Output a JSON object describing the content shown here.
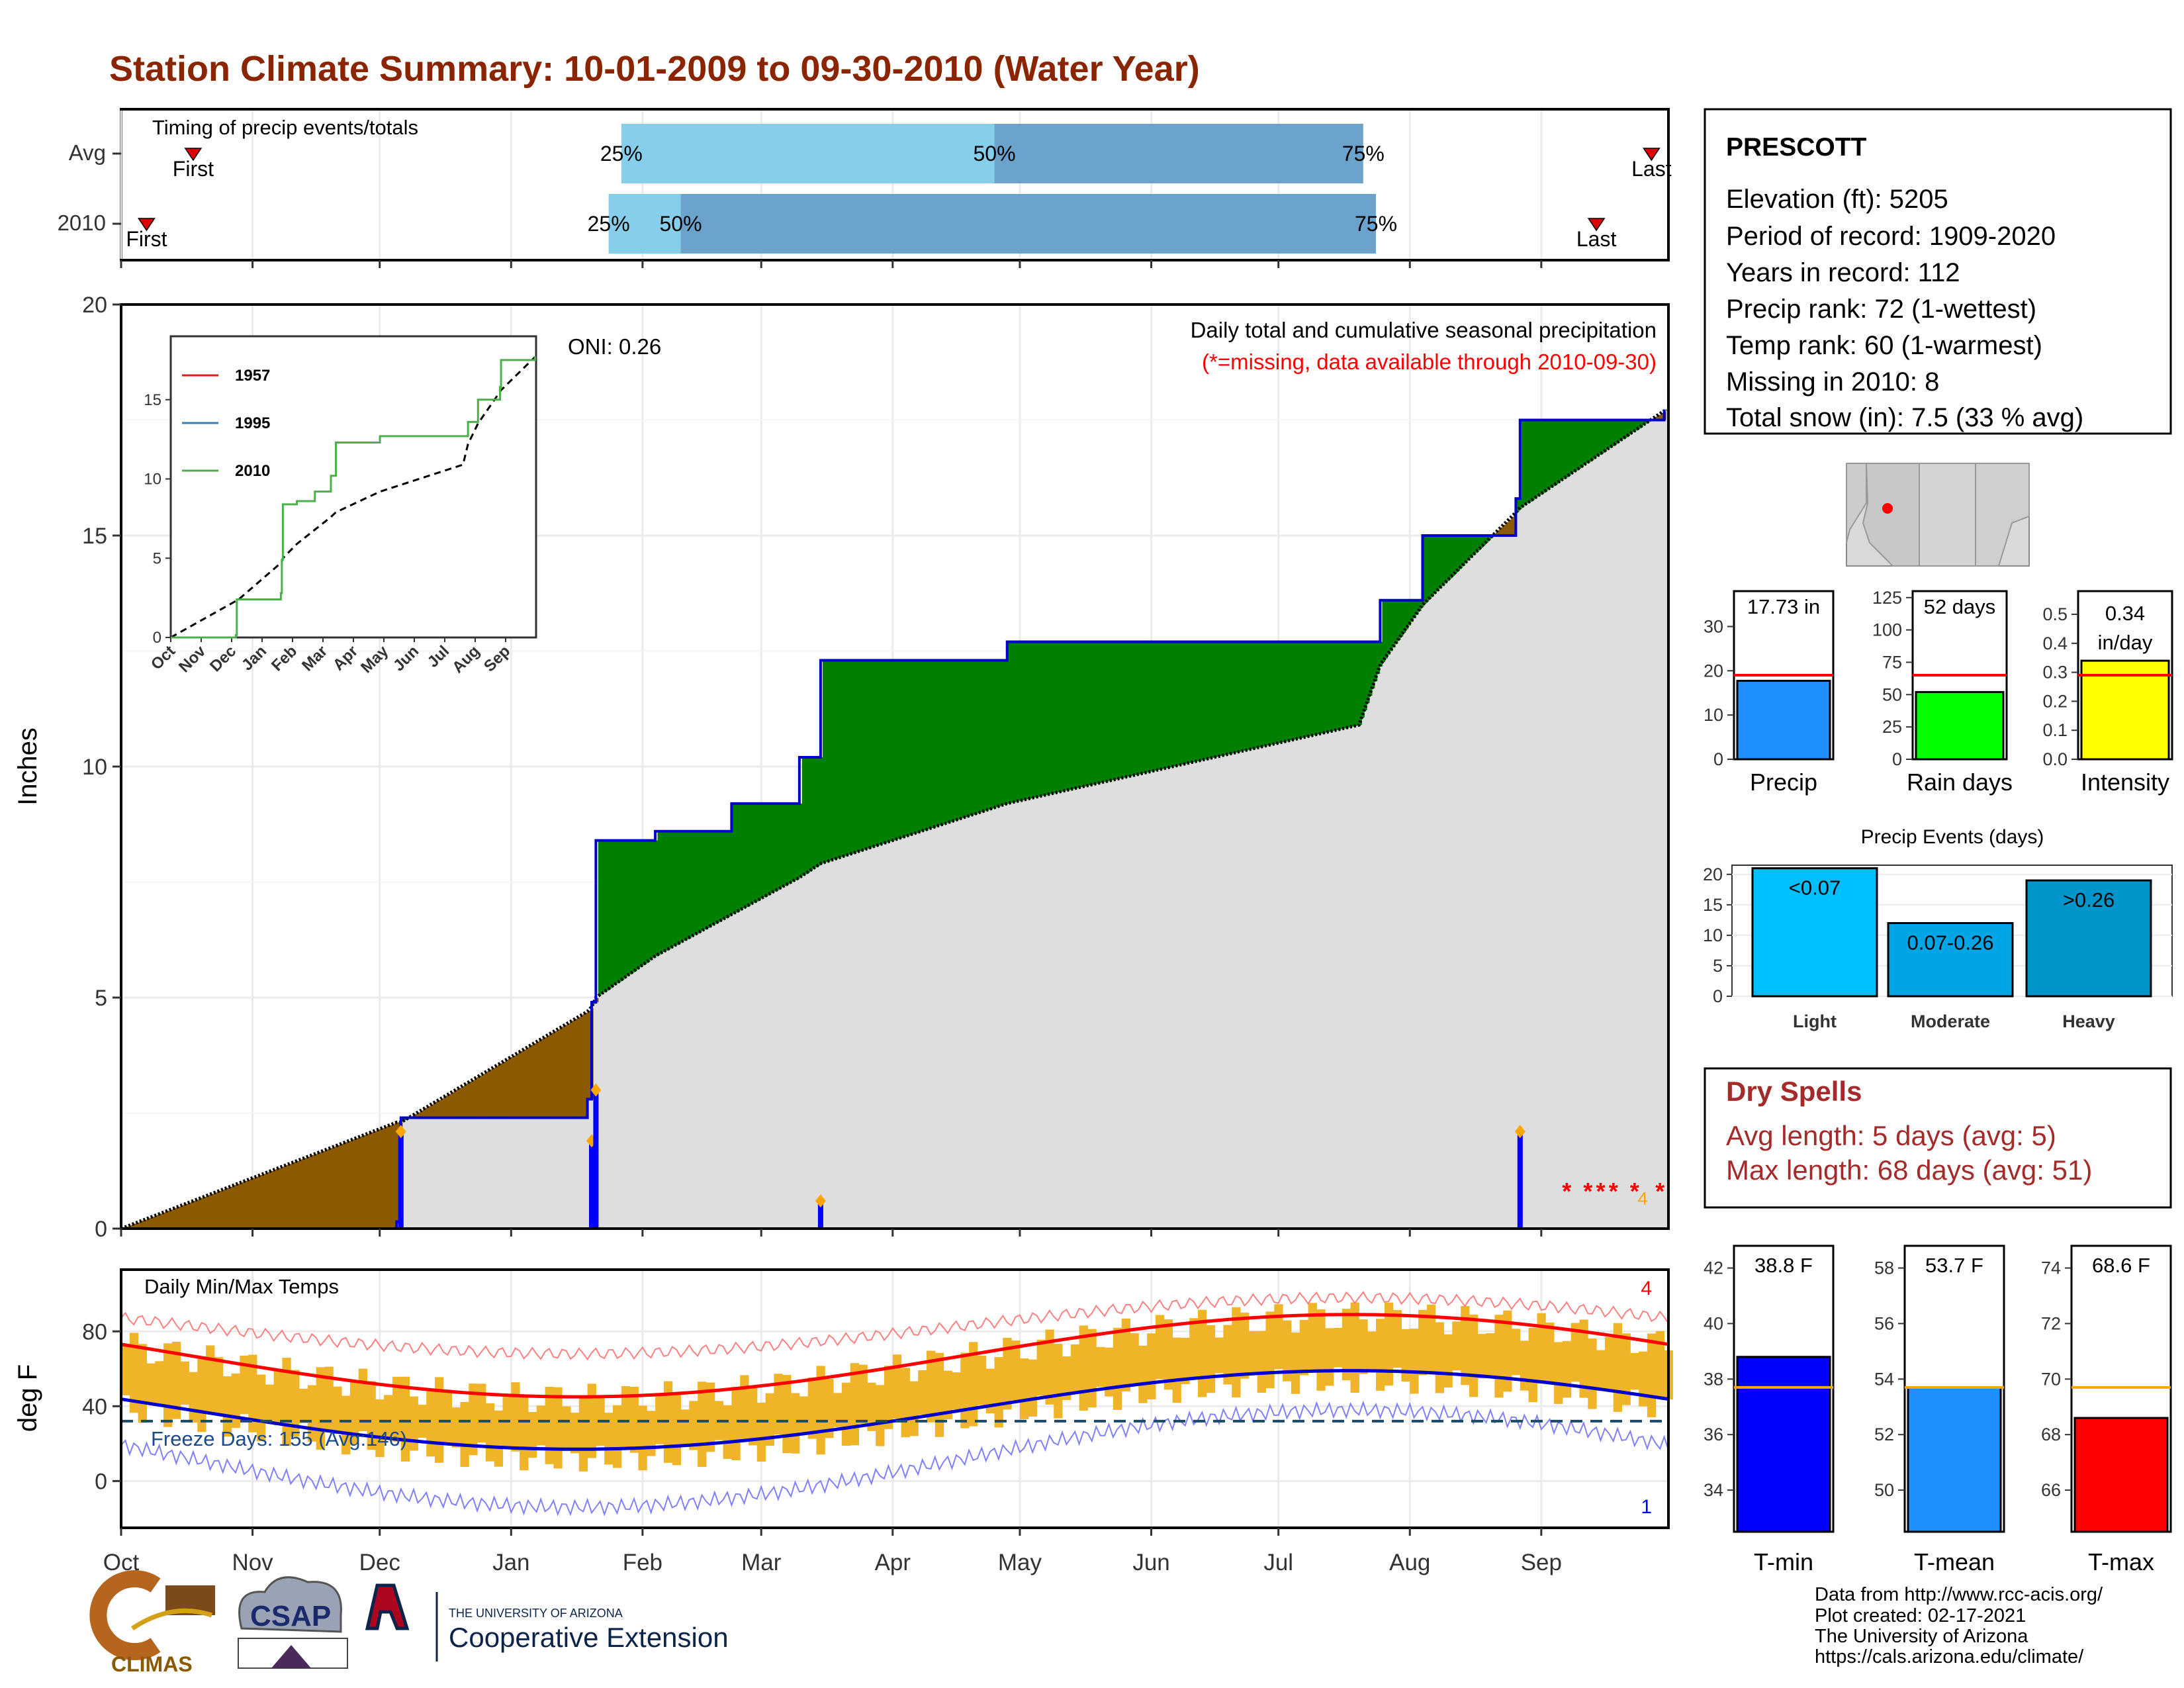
{
  "page": {
    "title": "Station Climate Summary: 10-01-2009 to 09-30-2010 (Water Year)"
  },
  "timing": {
    "label": "Timing of precip events/totals",
    "rows": [
      {
        "name": "Avg",
        "first_label": "First",
        "last_label": "Last",
        "first_date": "2009-10-18",
        "last_date": "2010-09-27",
        "p25": "2010-01-27",
        "p50": "2010-04-25",
        "p75": "2010-07-21"
      },
      {
        "name": "2010",
        "first_label": "First",
        "last_label": "Last",
        "first_date": "2009-10-07",
        "last_date": "2010-09-14",
        "p25": "2010-01-24",
        "p50": "2010-02-10",
        "p75": "2010-07-24"
      }
    ],
    "pct_labels": [
      "25%",
      "50%",
      "75%"
    ],
    "colors": {
      "light": "#87ceeb",
      "dark": "#6ba3cc",
      "marker": "#dd0000"
    }
  },
  "precip": {
    "ylabel": "Inches",
    "title": "Daily total and cumulative seasonal precipitation",
    "subtitle": "(*=missing, data available through 2010-09-30)",
    "oni": "ONI: 0.26",
    "missing_marker": "*",
    "count_label": "4",
    "yticks": [
      "0",
      "5",
      "10",
      "15",
      "20"
    ],
    "colors": {
      "avg": "#000000",
      "obs": "#0000cc",
      "above": "#008000",
      "below": "#8b5a00",
      "fill": "#dedede"
    }
  },
  "inset": {
    "legend": [
      "1957",
      "1995",
      "2010"
    ],
    "yticks": [
      "0",
      "5",
      "10",
      "15"
    ],
    "xticks": [
      "Oct",
      "Nov",
      "Dec",
      "Jan",
      "Feb",
      "Mar",
      "Apr",
      "May",
      "Jun",
      "Jul",
      "Aug",
      "Sep"
    ],
    "colors": {
      "1957": "#e41a1c",
      "1995": "#377eb8",
      "2010": "#4daf4a"
    }
  },
  "temp": {
    "ylabel": "deg F",
    "label": "Daily Min/Max Temps",
    "freeze": "Freeze Days: 155 (Avg:146)",
    "top_count": "4",
    "bottom_count": "1",
    "yticks": [
      "0",
      "40",
      "80"
    ]
  },
  "xaxis": {
    "months": [
      "Oct",
      "Nov",
      "Dec",
      "Jan",
      "Feb",
      "Mar",
      "Apr",
      "May",
      "Jun",
      "Jul",
      "Aug",
      "Sep"
    ]
  },
  "station": {
    "name": "PRESCOTT",
    "lines": [
      "Elevation (ft): 5205",
      "Period of record: 1909-2020",
      "Years in record: 112",
      "Precip rank: 72 (1-wettest)",
      "Temp rank: 60 (1-warmest)",
      "Missing in 2010: 8",
      "Total snow (in): 7.5 (33 % avg)"
    ]
  },
  "summary_bars": [
    {
      "label": "Precip",
      "value_label": "17.73 in",
      "value": 17.73,
      "avg": 19.0,
      "max": 38,
      "ticks": [
        "0",
        "10",
        "20",
        "30"
      ],
      "tick_vals": [
        0,
        10,
        20,
        30
      ],
      "color": "#1e90ff"
    },
    {
      "label": "Rain days",
      "value_label": "52 days",
      "value": 52,
      "avg": 65,
      "max": 130,
      "ticks": [
        "0",
        "25",
        "50",
        "75",
        "100",
        "125"
      ],
      "tick_vals": [
        0,
        25,
        50,
        75,
        100,
        125
      ],
      "color": "#00ff00"
    },
    {
      "label": "Intensity",
      "value_label": "0.34 in/day",
      "value": 0.34,
      "avg": 0.29,
      "max": 0.58,
      "ticks": [
        "0.0",
        "0.1",
        "0.2",
        "0.3",
        "0.4",
        "0.5"
      ],
      "tick_vals": [
        0,
        0.1,
        0.2,
        0.3,
        0.4,
        0.5
      ],
      "color": "#ffff00"
    }
  ],
  "events": {
    "title": "Precip Events (days)",
    "bars": [
      {
        "label": "Light",
        "value_label": "<0.07",
        "value": 21,
        "color": "#00bfff"
      },
      {
        "label": "Moderate",
        "value_label": "0.07-0.26",
        "value": 12,
        "color": "#00a5e6"
      },
      {
        "label": "Heavy",
        "value_label": ">0.26",
        "value": 19,
        "color": "#0096cc"
      }
    ],
    "yticks": [
      "0",
      "5",
      "10",
      "15",
      "20"
    ]
  },
  "dry_spells": {
    "title": "Dry Spells",
    "lines": [
      "Avg length: 5 days (avg: 5)",
      "Max length: 68 days (avg: 51)"
    ],
    "color": "#a52a2a"
  },
  "temp_bars": [
    {
      "label": "T-min",
      "value_label": "38.8 F",
      "value": 38.8,
      "avg": 37.7,
      "min": 32.5,
      "max": 42.8,
      "ticks": [
        "34",
        "36",
        "38",
        "40",
        "42"
      ],
      "tick_vals": [
        34,
        36,
        38,
        40,
        42
      ],
      "color": "#0000ff"
    },
    {
      "label": "T-mean",
      "value_label": "53.7 F",
      "value": 53.7,
      "avg": 53.7,
      "min": 48.5,
      "max": 58.8,
      "ticks": [
        "50",
        "52",
        "54",
        "56",
        "58"
      ],
      "tick_vals": [
        50,
        52,
        54,
        56,
        58
      ],
      "color": "#1e90ff"
    },
    {
      "label": "T-max",
      "value_label": "68.6 F",
      "value": 68.6,
      "avg": 69.7,
      "min": 64.5,
      "max": 74.8,
      "ticks": [
        "66",
        "68",
        "70",
        "72",
        "74"
      ],
      "tick_vals": [
        66,
        68,
        70,
        72,
        74
      ],
      "color": "#ff0000"
    }
  ],
  "footer": {
    "lines": [
      "Data from http://www.rcc-acis.org/",
      "Plot created: 02-17-2021",
      "The University of Arizona",
      "https://cals.arizona.edu/climate/"
    ],
    "climas": "CLIMAS",
    "csap": "CSAP",
    "ua_small": "THE UNIVERSITY OF ARIZONA",
    "ua_big": "Cooperative Extension"
  },
  "chart_data": {
    "type": "area",
    "title": "Daily total and cumulative seasonal precipitation",
    "ylabel": "Inches",
    "ylim": [
      0,
      20
    ],
    "x": [
      "2009-10-01",
      "2009-12-05",
      "2009-12-06",
      "2010-01-19",
      "2010-01-20",
      "2010-01-21",
      "2010-02-04",
      "2010-02-22",
      "2010-03-10",
      "2010-03-15",
      "2010-04-28",
      "2010-07-20",
      "2010-07-25",
      "2010-08-04",
      "2010-08-26",
      "2010-08-27",
      "2010-09-30"
    ],
    "series": [
      {
        "name": "2010",
        "values": [
          0.0,
          0.15,
          2.4,
          2.8,
          4.9,
          8.4,
          8.6,
          9.2,
          10.2,
          12.3,
          12.7,
          12.7,
          13.6,
          15.0,
          15.8,
          17.5,
          17.73
        ]
      },
      {
        "name": "Avg",
        "values": [
          0.0,
          2.3,
          2.3,
          4.7,
          4.8,
          5.0,
          5.9,
          6.8,
          7.6,
          7.9,
          9.2,
          10.9,
          12.2,
          13.5,
          15.5,
          15.6,
          17.7
        ]
      }
    ],
    "daily_events": [
      {
        "date": "2009-12-06",
        "value": 2.1
      },
      {
        "date": "2010-01-20",
        "value": 1.9
      },
      {
        "date": "2010-01-21",
        "value": 3.0
      },
      {
        "date": "2010-03-15",
        "value": 0.6
      },
      {
        "date": "2010-08-27",
        "value": 2.1
      }
    ]
  }
}
